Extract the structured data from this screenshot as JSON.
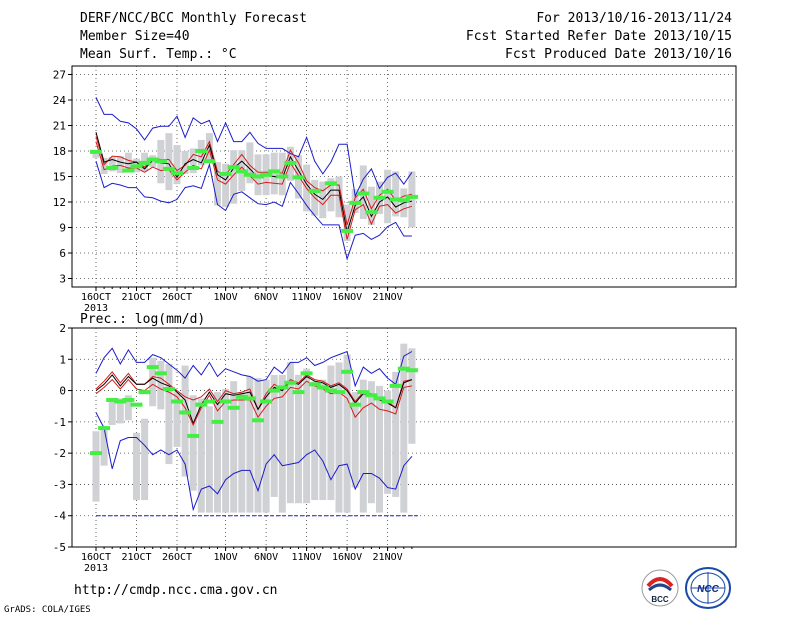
{
  "header": {
    "title": "DERF/NCC/BCC Monthly Forecast",
    "member_size": "Member Size=40",
    "variable_top": "Mean Surf. Temp.: °C",
    "period": "For 2013/10/16-2013/11/24",
    "fcst_started": "Fcst Started Refer Date 2013/10/15",
    "fcst_produced": "Fcst Produced Date 2013/10/16"
  },
  "footer": {
    "url": "http://cmdp.ncc.cma.gov.cn",
    "grads": "GrADS: COLA/IGES",
    "logo_left": "BCC",
    "logo_right": "NCC"
  },
  "colors": {
    "max_min_line": "#1c1ccc",
    "pct_line": "#d81c1c",
    "mean_line": "#000000",
    "box": "#d0d1d4",
    "observed": "#44ee44",
    "grid": "#444444"
  },
  "chart_data": [
    {
      "type": "line",
      "ylabel": "Mean Surf. Temp.: °C",
      "ylim": [
        2,
        28
      ],
      "yticks": [
        3,
        6,
        9,
        12,
        15,
        18,
        21,
        24,
        27
      ],
      "xtick_labels": [
        "16OCT",
        "21OCT",
        "26OCT",
        "1NOV",
        "6NOV",
        "11NOV",
        "16NOV",
        "21NOV"
      ],
      "xtick_index": [
        0,
        5,
        10,
        16,
        21,
        26,
        31,
        36
      ],
      "year_label": "2013",
      "grid": true,
      "series": [
        {
          "role": "max",
          "values": [
            24.3,
            22.3,
            22.3,
            21.5,
            21.3,
            20.6,
            19.3,
            20.7,
            20.9,
            20.9,
            22.1,
            19.6,
            21.9,
            21.2,
            21.6,
            19.1,
            21.3,
            19.1,
            19.1,
            20.2,
            18.9,
            18.3,
            18.3,
            18.3,
            17.7,
            17.3,
            19.6,
            16.8,
            15.3,
            16.7,
            18.8,
            18.8,
            12.7,
            14.7,
            15.9,
            13.6,
            14.9,
            15.4,
            14.1,
            15.5
          ]
        },
        {
          "role": "p_high",
          "values": [
            19.7,
            16.4,
            17.4,
            17.3,
            16.9,
            16.7,
            16.1,
            17.1,
            17.0,
            17.0,
            15.7,
            16.3,
            17.6,
            17.3,
            19.1,
            15.6,
            15.2,
            16.4,
            17.6,
            16.3,
            15.5,
            15.5,
            15.5,
            15.4,
            18.1,
            16.6,
            14.5,
            13.7,
            13.3,
            14.0,
            14.0,
            9.3,
            12.5,
            13.5,
            11.2,
            12.8,
            13.5,
            12.2,
            12.7,
            12.9
          ]
        },
        {
          "role": "mean",
          "values": [
            20.2,
            16.7,
            17.0,
            16.7,
            16.5,
            16.7,
            15.9,
            16.9,
            16.6,
            16.5,
            14.9,
            16.5,
            17.0,
            16.6,
            18.7,
            15.2,
            14.6,
            16.0,
            16.8,
            15.9,
            14.9,
            15.1,
            15.0,
            14.8,
            17.3,
            15.7,
            14.1,
            12.9,
            12.3,
            13.4,
            13.4,
            8.5,
            11.6,
            12.6,
            10.3,
            12.0,
            12.6,
            11.4,
            11.9,
            12.1
          ]
        },
        {
          "role": "p_low",
          "values": [
            19.1,
            15.8,
            16.2,
            16.3,
            16.0,
            16.0,
            15.5,
            16.1,
            15.7,
            15.8,
            14.6,
            15.5,
            16.3,
            15.9,
            18.1,
            14.6,
            14.1,
            15.2,
            16.1,
            15.1,
            14.1,
            14.3,
            14.2,
            14.1,
            16.6,
            15.1,
            13.6,
            12.5,
            11.7,
            12.8,
            12.8,
            7.6,
            11.1,
            11.7,
            9.4,
            11.5,
            11.7,
            10.7,
            11.2,
            11.5
          ]
        },
        {
          "role": "min",
          "values": [
            16.8,
            13.7,
            14.2,
            14.0,
            13.7,
            13.7,
            12.6,
            12.5,
            12.1,
            11.9,
            12.3,
            13.7,
            13.9,
            13.6,
            16.4,
            11.7,
            11.0,
            12.9,
            13.2,
            12.5,
            11.8,
            11.7,
            12.0,
            11.5,
            14.3,
            13.0,
            11.6,
            10.4,
            9.3,
            9.3,
            9.3,
            5.3,
            8.1,
            8.3,
            7.6,
            8.1,
            9.1,
            9.6,
            8.0,
            8.0
          ]
        }
      ],
      "boxes": [
        [
          17.2,
          17.8
        ],
        [
          15.3,
          17.2
        ],
        [
          15.6,
          17.3
        ],
        [
          15.4,
          17.4
        ],
        [
          15.6,
          17.8
        ],
        [
          15.5,
          17.1
        ],
        [
          15.6,
          17.8
        ],
        [
          16.1,
          17.5
        ],
        [
          14.2,
          19.3
        ],
        [
          13.4,
          20.1
        ],
        [
          14.1,
          18.7
        ],
        [
          15.3,
          18.0
        ],
        [
          15.4,
          18.3
        ],
        [
          16.3,
          19.3
        ],
        [
          16.9,
          20.1
        ],
        [
          11.6,
          16.7
        ],
        [
          11.4,
          16.5
        ],
        [
          11.8,
          18.1
        ],
        [
          13.3,
          18.1
        ],
        [
          14.2,
          19.0
        ],
        [
          12.8,
          17.6
        ],
        [
          12.8,
          17.6
        ],
        [
          12.9,
          17.8
        ],
        [
          12.8,
          17.8
        ],
        [
          14.5,
          18.5
        ],
        [
          12.4,
          17.5
        ],
        [
          10.9,
          16.4
        ],
        [
          10.4,
          14.6
        ],
        [
          10.1,
          14.4
        ],
        [
          10.9,
          14.8
        ],
        [
          10.2,
          15.0
        ],
        [
          7.4,
          11.7
        ],
        [
          10.7,
          13.5
        ],
        [
          10.0,
          16.3
        ],
        [
          9.3,
          13.8
        ],
        [
          10.6,
          14.4
        ],
        [
          9.5,
          15.8
        ],
        [
          10.3,
          15.6
        ],
        [
          10.2,
          13.6
        ],
        [
          9.0,
          15.6
        ]
      ],
      "observed": [
        17.9,
        null,
        16.0,
        null,
        15.7,
        16.2,
        16.6,
        17.0,
        16.8,
        15.9,
        15.4,
        null,
        16.0,
        18.0,
        16.8,
        null,
        15.3,
        16.1,
        15.6,
        15.2,
        15.0,
        15.2,
        15.6,
        15.0,
        16.6,
        14.9,
        null,
        13.3,
        null,
        14.2,
        null,
        8.6,
        11.9,
        13.0,
        10.8,
        12.5,
        13.2,
        12.3,
        12.2,
        12.6
      ]
    },
    {
      "type": "line",
      "ylabel": "Prec.: log(mm/d)",
      "ylim": [
        -5,
        2
      ],
      "yticks": [
        -5,
        -4,
        -3,
        -2,
        -1,
        0,
        1,
        2
      ],
      "xtick_labels": [
        "16OCT",
        "21OCT",
        "26OCT",
        "1NOV",
        "6NOV",
        "11NOV",
        "16NOV",
        "21NOV"
      ],
      "xtick_index": [
        0,
        5,
        10,
        16,
        21,
        26,
        31,
        36
      ],
      "year_label": "2013",
      "grid": true,
      "series": [
        {
          "role": "max",
          "values": [
            0.55,
            1.05,
            1.35,
            0.85,
            1.3,
            0.9,
            0.9,
            1.15,
            1.05,
            0.85,
            0.65,
            0.4,
            0.8,
            0.5,
            0.9,
            0.45,
            0.7,
            0.6,
            0.5,
            0.45,
            0.3,
            0.35,
            0.75,
            0.55,
            0.9,
            0.9,
            1.05,
            0.8,
            0.9,
            1.05,
            1.15,
            1.25,
            0.15,
            0.75,
            0.55,
            0.7,
            0.4,
            0.2,
            1.1,
            1.25
          ]
        },
        {
          "role": "p_high",
          "values": [
            0.05,
            0.3,
            0.6,
            0.25,
            0.55,
            0.2,
            0.2,
            0.45,
            0.4,
            0.2,
            0.0,
            -0.2,
            -0.3,
            -0.2,
            0.05,
            -0.35,
            0.0,
            -0.1,
            -0.05,
            0.05,
            -0.6,
            -0.1,
            0.2,
            0.05,
            0.35,
            0.25,
            0.5,
            0.35,
            0.3,
            0.15,
            0.25,
            0.05,
            -0.35,
            -0.05,
            -0.1,
            -0.25,
            -0.35,
            -0.55,
            0.3,
            0.35
          ]
        },
        {
          "role": "mean",
          "values": [
            0.0,
            0.2,
            0.5,
            0.15,
            0.45,
            0.2,
            0.2,
            0.4,
            0.25,
            0.15,
            -0.05,
            -0.3,
            -1.05,
            -0.45,
            -0.05,
            -0.45,
            -0.1,
            -0.15,
            -0.1,
            -0.05,
            -0.6,
            -0.2,
            0.1,
            0.0,
            0.3,
            0.2,
            0.45,
            0.3,
            0.25,
            0.1,
            0.2,
            0.0,
            -0.4,
            -0.1,
            -0.15,
            -0.3,
            -0.4,
            -0.55,
            0.25,
            0.35
          ]
        },
        {
          "role": "p_low",
          "values": [
            -0.1,
            0.1,
            0.35,
            0.05,
            0.35,
            0.05,
            0.0,
            0.2,
            0.05,
            -0.05,
            -0.2,
            -0.55,
            -1.1,
            -0.55,
            -0.15,
            -0.65,
            -0.35,
            -0.3,
            -0.3,
            -0.3,
            -0.85,
            -0.5,
            -0.25,
            -0.2,
            0.1,
            0.05,
            0.3,
            0.15,
            0.05,
            -0.1,
            -0.05,
            -0.25,
            -0.85,
            -0.55,
            -0.4,
            -0.6,
            -0.65,
            -0.75,
            0.1,
            0.15
          ]
        },
        {
          "role": "min",
          "values": [
            -0.7,
            -1.2,
            -2.5,
            -1.6,
            -1.5,
            -1.5,
            -1.75,
            -2.05,
            -1.9,
            -2.05,
            -1.9,
            -2.35,
            -3.8,
            -3.15,
            -3.05,
            -3.3,
            -2.85,
            -2.65,
            -2.55,
            -2.55,
            -3.2,
            -2.35,
            -2.05,
            -2.4,
            -2.35,
            -2.3,
            -2.05,
            -1.9,
            -2.25,
            -2.85,
            -2.4,
            -2.35,
            -3.15,
            -2.65,
            -2.65,
            -2.8,
            -3.1,
            -3.15,
            -2.4,
            -2.1
          ]
        }
      ],
      "boxes": [
        [
          -3.55,
          -1.3
        ],
        [
          -2.4,
          -1.2
        ],
        [
          -1.1,
          -0.3
        ],
        [
          -1.05,
          -0.25
        ],
        [
          -0.95,
          -0.15
        ],
        [
          -3.5,
          -1.35
        ],
        [
          -3.5,
          -0.9
        ],
        [
          -0.5,
          1.05
        ],
        [
          -0.6,
          0.95
        ],
        [
          -2.35,
          0.85
        ],
        [
          -1.8,
          -0.05
        ],
        [
          -2.75,
          0.8
        ],
        [
          -3.2,
          -0.15
        ],
        [
          -3.9,
          -0.25
        ],
        [
          -3.9,
          -0.5
        ],
        [
          -3.9,
          -0.05
        ],
        [
          -3.9,
          0.05
        ],
        [
          -3.9,
          0.3
        ],
        [
          -3.9,
          -0.05
        ],
        [
          -3.9,
          0.45
        ],
        [
          -3.9,
          0.4
        ],
        [
          -3.9,
          0.35
        ],
        [
          -3.4,
          0.5
        ],
        [
          -3.9,
          0.5
        ],
        [
          -3.6,
          0.9
        ],
        [
          -3.6,
          0.5
        ],
        [
          -3.6,
          0.7
        ],
        [
          -3.5,
          0.3
        ],
        [
          -3.5,
          0.35
        ],
        [
          -3.5,
          0.8
        ],
        [
          -3.9,
          0.9
        ],
        [
          -3.9,
          1.15
        ],
        [
          -3.1,
          -0.05
        ],
        [
          -3.9,
          0.35
        ],
        [
          -3.6,
          0.3
        ],
        [
          -3.9,
          0.15
        ],
        [
          -3.3,
          0.0
        ],
        [
          -3.4,
          0.6
        ],
        [
          -3.9,
          1.5
        ],
        [
          -1.7,
          1.35
        ]
      ],
      "observed": [
        -2.0,
        -1.2,
        -0.3,
        -0.35,
        -0.3,
        -0.45,
        -0.05,
        0.75,
        0.55,
        0.05,
        -0.35,
        -0.7,
        -1.45,
        -0.45,
        -0.35,
        -1.0,
        -0.35,
        -0.55,
        -0.2,
        -0.25,
        -0.95,
        -0.35,
        0.0,
        0.1,
        0.25,
        -0.05,
        0.55,
        0.2,
        0.1,
        0.0,
        -0.05,
        0.6,
        -0.45,
        -0.05,
        -0.15,
        -0.25,
        -0.35,
        0.15,
        0.7,
        0.65
      ],
      "floor_value": -4
    }
  ]
}
